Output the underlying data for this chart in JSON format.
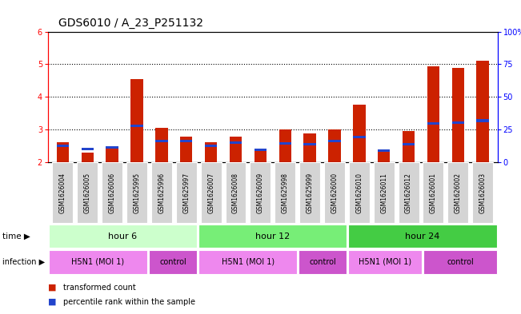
{
  "title": "GDS6010 / A_23_P251132",
  "samples": [
    "GSM1626004",
    "GSM1626005",
    "GSM1626006",
    "GSM1625995",
    "GSM1625996",
    "GSM1625997",
    "GSM1626007",
    "GSM1626008",
    "GSM1626009",
    "GSM1625998",
    "GSM1625999",
    "GSM1626000",
    "GSM1626010",
    "GSM1626011",
    "GSM1626012",
    "GSM1626001",
    "GSM1626002",
    "GSM1626003"
  ],
  "red_values": [
    2.6,
    2.3,
    2.45,
    4.55,
    3.05,
    2.77,
    2.6,
    2.77,
    2.38,
    3.0,
    2.88,
    3.0,
    3.77,
    2.33,
    2.95,
    4.95,
    4.88,
    5.1
  ],
  "blue_values": [
    2.5,
    2.4,
    2.45,
    3.1,
    2.65,
    2.65,
    2.5,
    2.6,
    2.37,
    2.58,
    2.55,
    2.65,
    2.77,
    2.35,
    2.55,
    3.18,
    3.2,
    3.27
  ],
  "ylim_left": [
    2,
    6
  ],
  "ylim_right": [
    0,
    100
  ],
  "yticks_left": [
    2,
    3,
    4,
    5,
    6
  ],
  "yticks_right": [
    0,
    25,
    50,
    75,
    100
  ],
  "yticklabels_right": [
    "0",
    "25",
    "50",
    "75",
    "100%"
  ],
  "bar_color_red": "#cc2200",
  "bar_color_blue": "#2244cc",
  "bar_width": 0.5,
  "background_color": "#ffffff",
  "title_fontsize": 10,
  "tick_fontsize": 7,
  "label_fontsize": 8,
  "time_groups": [
    {
      "label": "hour 6",
      "start": 0,
      "end": 6,
      "color": "#ccffcc"
    },
    {
      "label": "hour 12",
      "start": 6,
      "end": 12,
      "color": "#77ee77"
    },
    {
      "label": "hour 24",
      "start": 12,
      "end": 18,
      "color": "#44cc44"
    }
  ],
  "infection_groups": [
    {
      "label": "H5N1 (MOI 1)",
      "start": 0,
      "end": 4,
      "color": "#ee88ee"
    },
    {
      "label": "control",
      "start": 4,
      "end": 6,
      "color": "#cc55cc"
    },
    {
      "label": "H5N1 (MOI 1)",
      "start": 6,
      "end": 10,
      "color": "#ee88ee"
    },
    {
      "label": "control",
      "start": 10,
      "end": 12,
      "color": "#cc55cc"
    },
    {
      "label": "H5N1 (MOI 1)",
      "start": 12,
      "end": 15,
      "color": "#ee88ee"
    },
    {
      "label": "control",
      "start": 15,
      "end": 18,
      "color": "#cc55cc"
    }
  ]
}
